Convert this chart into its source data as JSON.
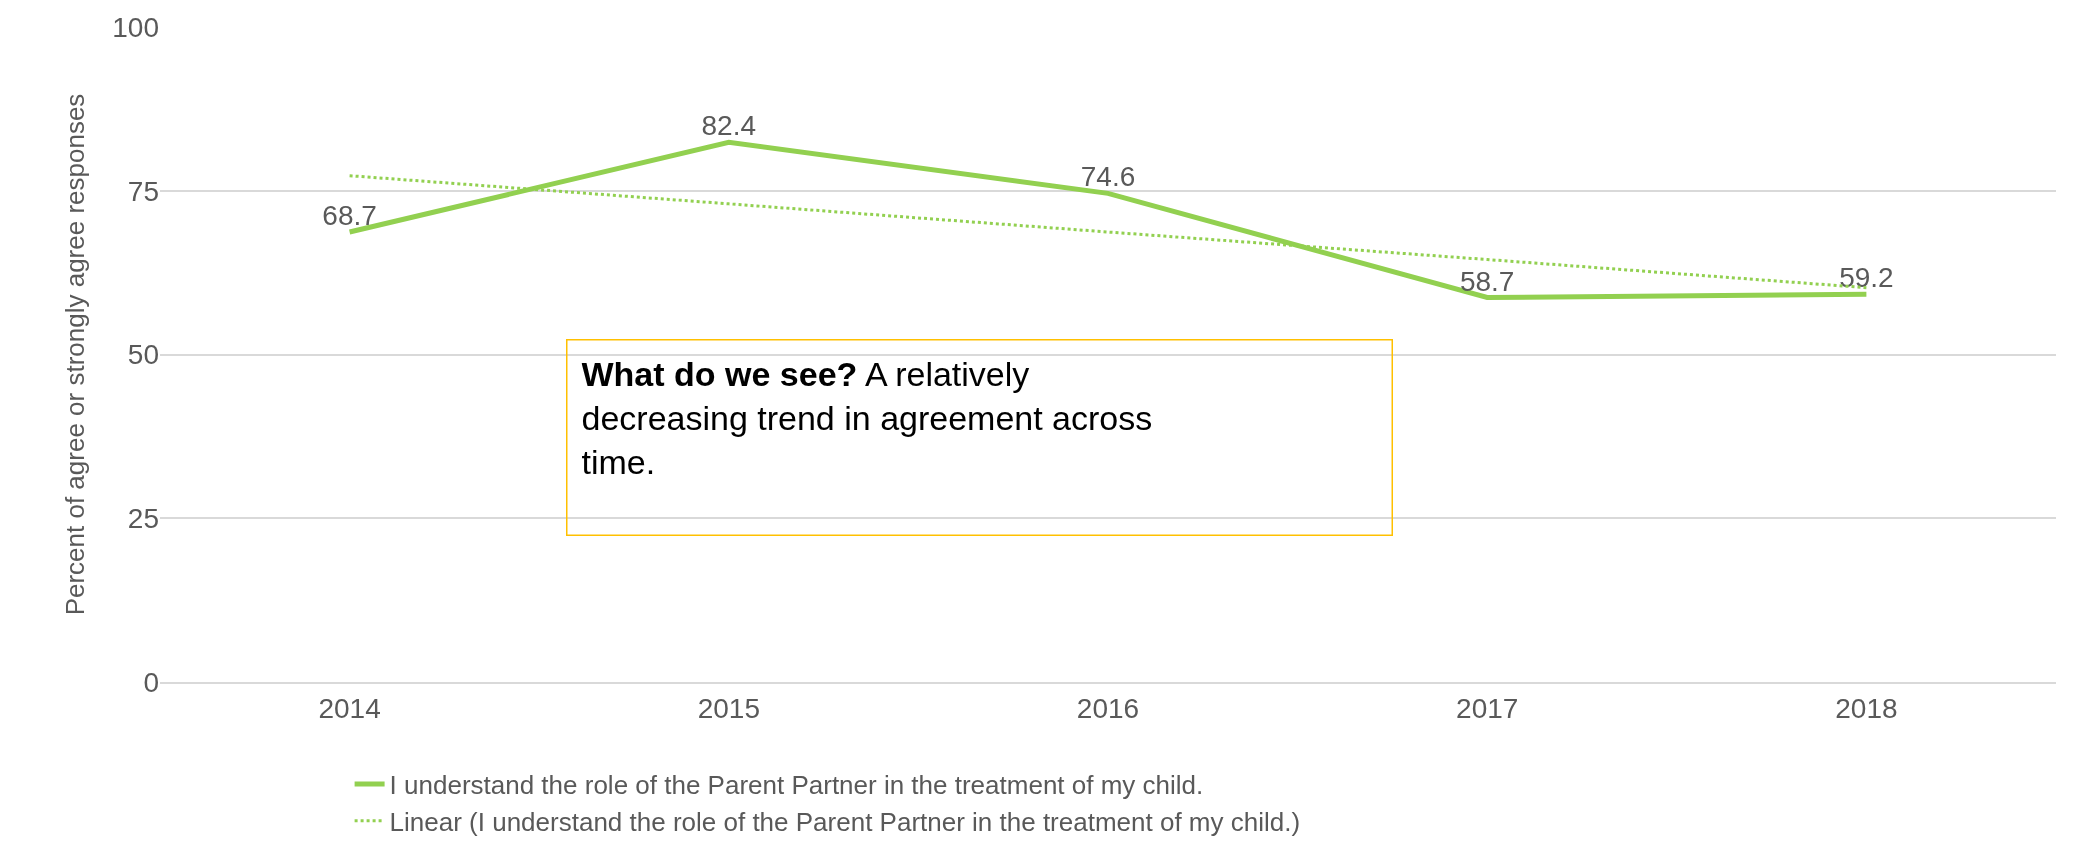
{
  "chart_data": {
    "type": "line",
    "ylabel": "Percent of agree or strongly agree responses",
    "categories": [
      "2014",
      "2015",
      "2016",
      "2017",
      "2018"
    ],
    "series": [
      {
        "name": "I understand the role of the Parent Partner in the treatment of my child.",
        "color": "#92d050",
        "values": [
          68.7,
          82.4,
          74.6,
          58.7,
          59.2
        ],
        "value_labels": [
          "68.7",
          "82.4",
          "74.6",
          "58.7",
          "59.2"
        ],
        "line_style": "solid"
      },
      {
        "name": "Linear (I understand the role of the Parent Partner in the treatment of my child.)",
        "color": "#92d050",
        "type": "line",
        "values": [
          77.3,
          73.0,
          68.7,
          64.5,
          60.2
        ],
        "line_style": "dotted"
      }
    ],
    "annotations": [
      "What do we see?",
      "A relatively decreasing trend in agreement across time."
    ],
    "ylim": [
      0,
      100
    ],
    "yticks": [
      0,
      25,
      50,
      75,
      100
    ],
    "grid": "y",
    "legend": "bottom",
    "marker": "none"
  }
}
